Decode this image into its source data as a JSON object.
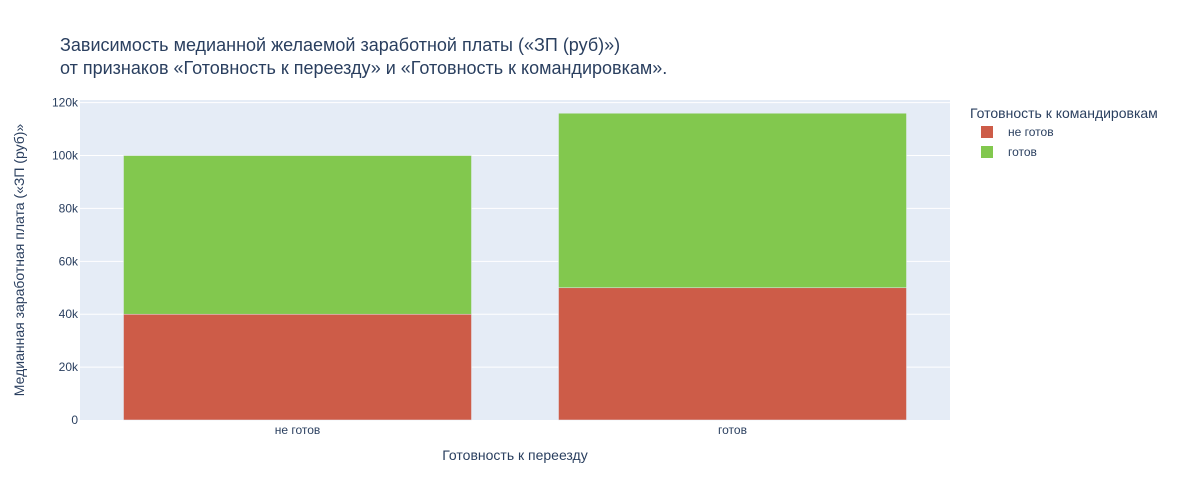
{
  "chart_data": {
    "type": "bar",
    "barmode": "stack",
    "title_lines": [
      "Зависимость медианной желаемой заработной платы («ЗП (руб)»)",
      "от признаков «Готовность к переезду» и «Готовность к командировкам»."
    ],
    "xlabel": "Готовность к переезду",
    "ylabel": "Медианная заработная плата («ЗП (руб)»",
    "categories": [
      "не готов",
      "готов"
    ],
    "ylim": [
      0,
      121000
    ],
    "yticks": [
      0,
      20000,
      40000,
      60000,
      80000,
      100000,
      120000
    ],
    "ytick_labels": [
      "0",
      "20k",
      "40k",
      "60k",
      "80k",
      "100k",
      "120k"
    ],
    "grid": true,
    "legend": {
      "title": "Готовность к командировкам",
      "placement": "top-right"
    },
    "series": [
      {
        "name": "не готов",
        "color": "#cd5c48",
        "values": [
          40000,
          50000
        ]
      },
      {
        "name": "готов",
        "color": "#82c84e",
        "values": [
          60000,
          66000
        ]
      }
    ]
  },
  "colors": {
    "plot_background": "#e5ecf6",
    "gridline": "#ffffff",
    "text": "#2a3f5f"
  }
}
